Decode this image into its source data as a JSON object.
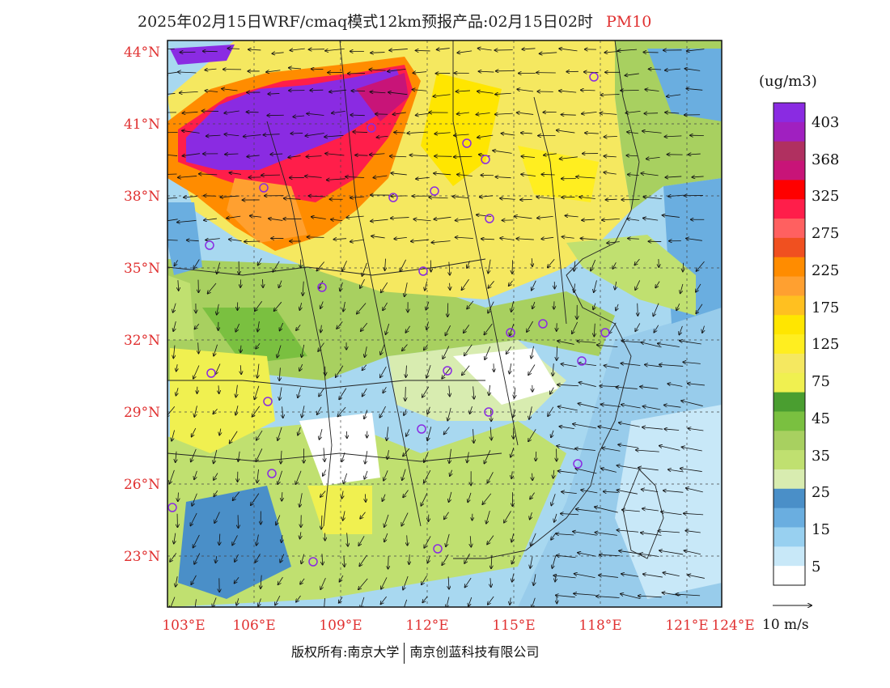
{
  "title": {
    "main": "2025年02月15日WRF/cmaq模式12km预报产品:02月15日02时",
    "species": "PM10"
  },
  "axes": {
    "lat_labels": [
      "44°N",
      "41°N",
      "38°N",
      "35°N",
      "32°N",
      "29°N",
      "26°N",
      "23°N"
    ],
    "lon_labels": [
      "103°E",
      "106°E",
      "109°E",
      "112°E",
      "115°E",
      "118°E",
      "121°E",
      "124°E"
    ]
  },
  "colorbar": {
    "unit": "(ug/m3)",
    "labels": [
      "403",
      "368",
      "325",
      "275",
      "225",
      "175",
      "125",
      "75",
      "45",
      "35",
      "25",
      "15",
      "5"
    ],
    "colors": [
      "#8a2be2",
      "#a020c0",
      "#b03060",
      "#c81478",
      "#ff0000",
      "#ff1e4a",
      "#ff6060",
      "#f05020",
      "#ff8c00",
      "#ffa030",
      "#ffc020",
      "#ffe600",
      "#ffee20",
      "#f5e860",
      "#f0f050",
      "#4a9e30",
      "#7ac040",
      "#a8d060",
      "#c0e070",
      "#d8ecb0",
      "#4a8fc8",
      "#6aaee0",
      "#98d0f0",
      "#c8e8f8",
      "#ffffff"
    ]
  },
  "wind_reference": "10 m/s",
  "footer": {
    "left": "版权所有:南京大学",
    "right": "南京创蓝科技有限公司"
  }
}
